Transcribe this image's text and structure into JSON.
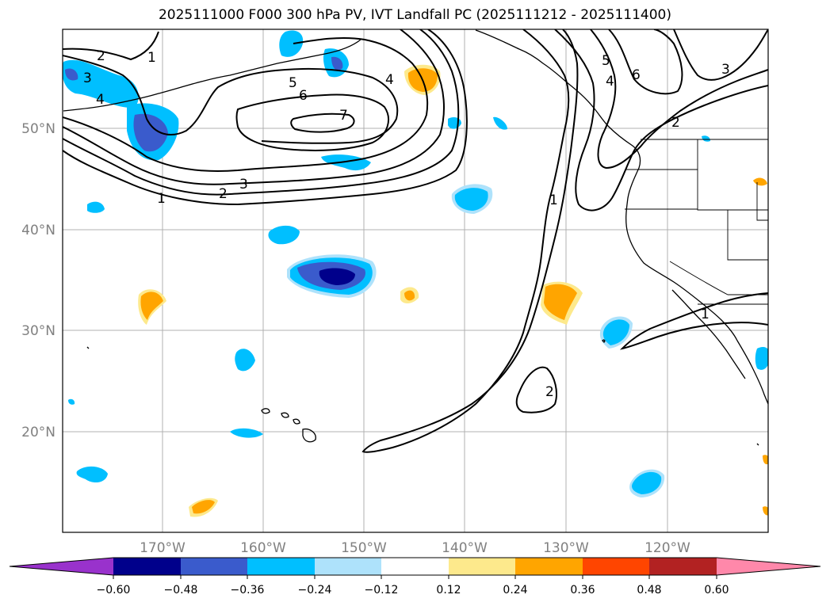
{
  "title": "2025111000 F000 300 hPa PV, IVT Landfall PC (2025111212 - 2025111400)",
  "map": {
    "lon_labels": [
      "170°W",
      "160°W",
      "150°W",
      "140°W",
      "130°W",
      "120°W"
    ],
    "lat_labels": [
      "50°N",
      "40°N",
      "30°N",
      "20°N"
    ]
  },
  "contours": {
    "labels": [
      "1",
      "2",
      "3",
      "4",
      "5",
      "6",
      "7",
      "5",
      "4",
      "6",
      "3",
      "2",
      "1",
      "1",
      "2",
      "4",
      "3",
      "2",
      "1"
    ]
  },
  "colorbar": {
    "tick_labels": [
      "−0.60",
      "−0.48",
      "−0.36",
      "−0.24",
      "−0.12",
      "0.12",
      "0.24",
      "0.36",
      "0.48",
      "0.60"
    ],
    "colors": [
      "#9932cc",
      "#00008b",
      "#3a5bcc",
      "#00bfff",
      "#aee2fb",
      "#ffffff",
      "#fde98c",
      "#ffa500",
      "#ff4500",
      "#b22222",
      "#ff88aa"
    ]
  }
}
